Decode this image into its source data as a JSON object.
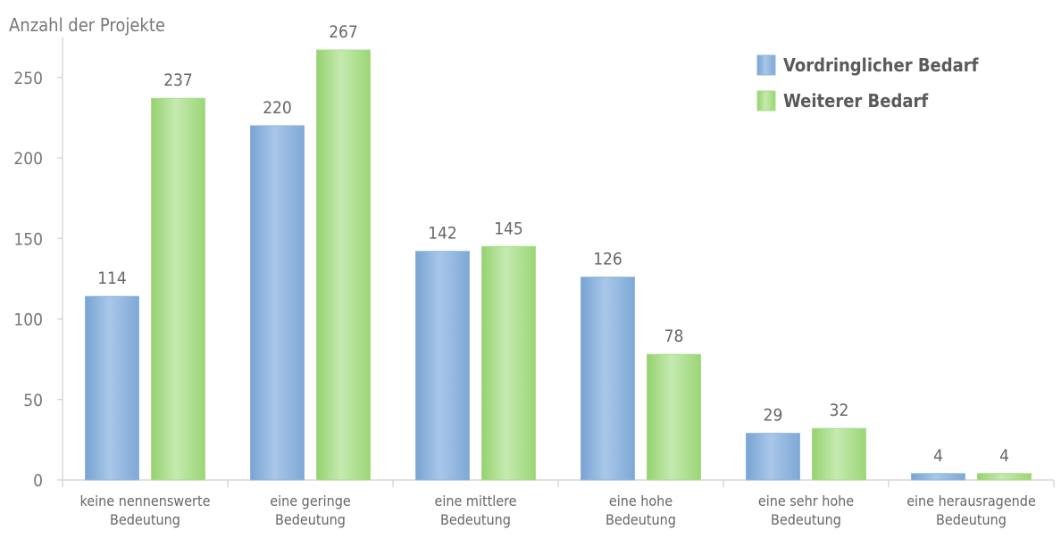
{
  "chart_data": {
    "type": "bar",
    "ylabel": "Anzahl der Projekte",
    "ylim": [
      0,
      275
    ],
    "yticks": [
      0,
      50,
      100,
      150,
      200,
      250
    ],
    "categories": [
      [
        "keine nennenswerte",
        "Bedeutung"
      ],
      [
        "eine geringe",
        "Bedeutung"
      ],
      [
        "eine mittlere",
        "Bedeutung"
      ],
      [
        "eine hohe",
        "Bedeutung"
      ],
      [
        "eine sehr hohe",
        "Bedeutung"
      ],
      [
        "eine herausragende",
        "Bedeutung"
      ]
    ],
    "series": [
      {
        "name": "Vordringlicher Bedarf",
        "color": "#8fb5de",
        "values": [
          114,
          220,
          142,
          126,
          29,
          4
        ]
      },
      {
        "name": "Weiterer Bedarf",
        "color": "#a8dc8a",
        "values": [
          237,
          267,
          145,
          78,
          32,
          4
        ]
      }
    ],
    "legend_position": "top-right",
    "data_labels": true,
    "grid": false
  }
}
